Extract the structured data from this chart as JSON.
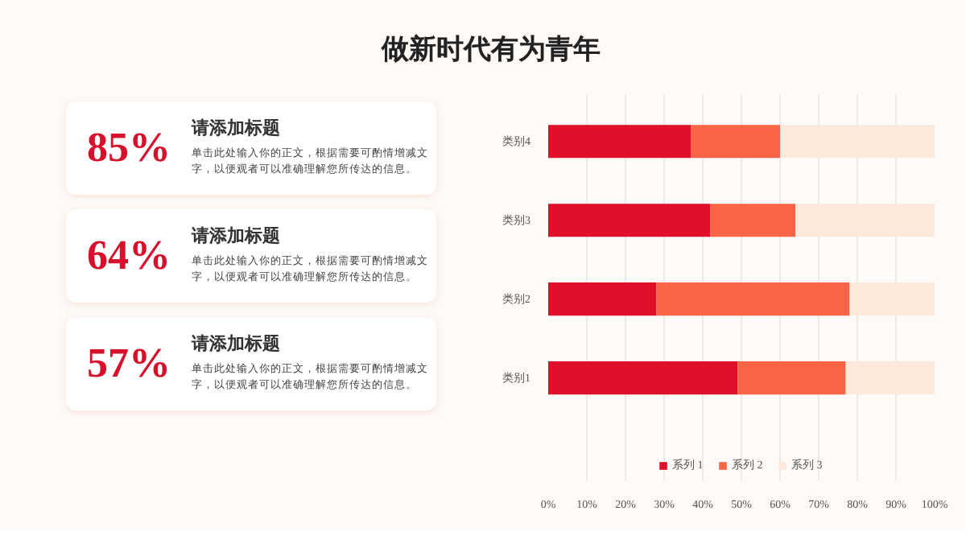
{
  "chart_data": {
    "type": "bar",
    "orientation": "horizontal",
    "stacked": true,
    "title": "做新时代有为青年",
    "categories": [
      "类别4",
      "类别3",
      "类别2",
      "类别1"
    ],
    "series": [
      {
        "name": "系列 1",
        "color": "#e0102a",
        "values": [
          37,
          42,
          28,
          49
        ]
      },
      {
        "name": "系列 2",
        "color": "#f96446",
        "values": [
          23,
          22,
          50,
          28
        ]
      },
      {
        "name": "系列 3",
        "color": "#fde9dc",
        "values": [
          40,
          36,
          22,
          23
        ]
      }
    ],
    "xlim": [
      0,
      100
    ],
    "xticks": [
      {
        "value": 0,
        "label": "0%"
      },
      {
        "value": 10,
        "label": "10%"
      },
      {
        "value": 20,
        "label": "20%"
      },
      {
        "value": 30,
        "label": "30%"
      },
      {
        "value": 40,
        "label": "40%"
      },
      {
        "value": 50,
        "label": "50%"
      },
      {
        "value": 60,
        "label": "60%"
      },
      {
        "value": 70,
        "label": "70%"
      },
      {
        "value": 80,
        "label": "80%"
      },
      {
        "value": 90,
        "label": "90%"
      },
      {
        "value": 100,
        "label": "100%"
      }
    ],
    "grid": "x",
    "legend": "bottom",
    "annotations": [
      "85%",
      "请添加标题",
      "单击此处输入你的正文，根据需要可酌情增减文字，以便观者可以准确理解您所传达的信息。",
      "64%",
      "请添加标题",
      "单击此处输入你的正文，根据需要可酌情增减文字，以便观者可以准确理解您所传达的信息。",
      "57%",
      "请添加标题",
      "单击此处输入你的正文，根据需要可酌情增减文字，以便观者可以准确理解您所传达的信息。"
    ]
  }
}
